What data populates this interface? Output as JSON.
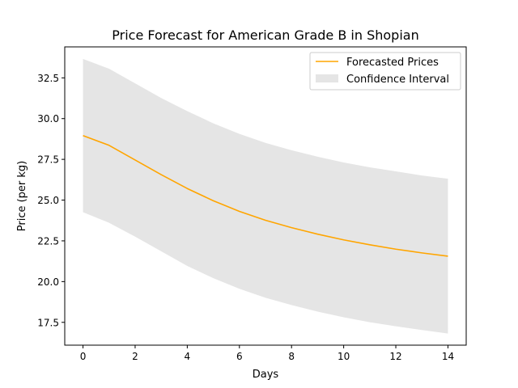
{
  "chart_data": {
    "type": "line",
    "title": "Price Forecast for American Grade B in Shopian",
    "xlabel": "Days",
    "ylabel": "Price (per kg)",
    "xlim": [
      -0.7,
      14.7
    ],
    "ylim": [
      16.1,
      34.4
    ],
    "x_ticks": [
      0,
      2,
      4,
      6,
      8,
      10,
      12,
      14
    ],
    "y_ticks": [
      17.5,
      20.0,
      22.5,
      25.0,
      27.5,
      30.0,
      32.5
    ],
    "x_tick_labels": [
      "0",
      "2",
      "4",
      "6",
      "8",
      "10",
      "12",
      "14"
    ],
    "y_tick_labels": [
      "17.5",
      "20.0",
      "22.5",
      "25.0",
      "27.5",
      "30.0",
      "32.5"
    ],
    "x": [
      0,
      1,
      2,
      3,
      4,
      5,
      6,
      7,
      8,
      9,
      10,
      11,
      12,
      13,
      14
    ],
    "series": [
      {
        "name": "Forecasted Prices",
        "type": "line",
        "color": "#ffa500",
        "values": [
          28.96,
          28.36,
          27.46,
          26.56,
          25.71,
          24.96,
          24.31,
          23.76,
          23.31,
          22.91,
          22.56,
          22.26,
          21.99,
          21.76,
          21.56
        ]
      }
    ],
    "confidence_interval": {
      "name": "Confidence Interval",
      "color": "#cccccc",
      "opacity": 0.5,
      "lower": [
        24.26,
        23.61,
        22.76,
        21.86,
        20.96,
        20.21,
        19.56,
        19.01,
        18.56,
        18.16,
        17.81,
        17.51,
        17.26,
        17.03,
        16.81
      ],
      "upper": [
        33.66,
        33.06,
        32.16,
        31.26,
        30.46,
        29.71,
        29.06,
        28.51,
        28.06,
        27.66,
        27.31,
        27.01,
        26.76,
        26.51,
        26.31
      ]
    },
    "grid": false,
    "legend": {
      "position": "top-right",
      "entries": [
        "Forecasted Prices",
        "Confidence Interval"
      ]
    }
  }
}
